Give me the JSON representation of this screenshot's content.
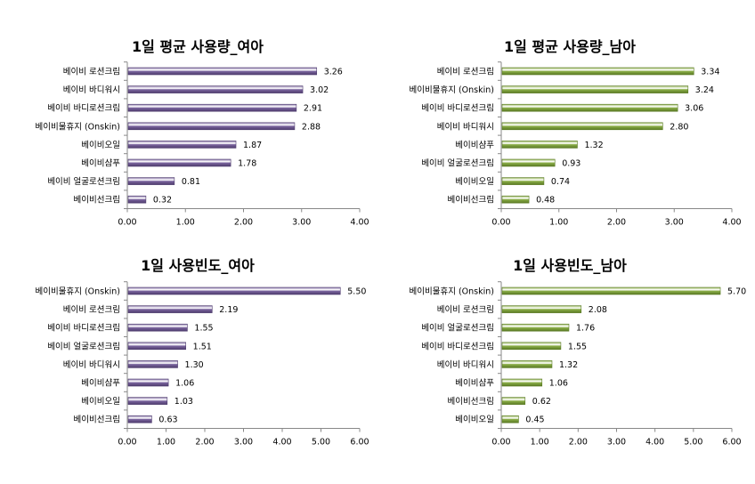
{
  "colors": {
    "female": "#7c66a0",
    "female_dark": "#4f3d6e",
    "male": "#8db04a",
    "male_dark": "#5a7a24",
    "axis": "#888888"
  },
  "chart_data": [
    {
      "type": "bar",
      "orientation": "horizontal",
      "title": "1일 평균 사용량_여아",
      "categories": [
        "베이비 로션크림",
        "베이비 바디워시",
        "베이비 바디로션크림",
        "베이비물휴지 (Onskin)",
        "베이비오일",
        "베이비샴푸",
        "베이비 얼굴로션크림",
        "베이비선크림"
      ],
      "values": [
        3.26,
        3.02,
        2.91,
        2.88,
        1.87,
        1.78,
        0.81,
        0.32
      ],
      "labels": [
        "3.26",
        "3.02",
        "2.91",
        "2.88",
        "1.87",
        "1.78",
        "0.81",
        "0.32"
      ],
      "xlim": [
        0,
        4
      ],
      "ticks": [
        "0.00",
        "1.00",
        "2.00",
        "3.00",
        "4.00"
      ],
      "series_color": "female",
      "grid": false,
      "legend": "none"
    },
    {
      "type": "bar",
      "orientation": "horizontal",
      "title": "1일 평균 사용량_남아",
      "categories": [
        "베이비 로션크림",
        "베이비물휴지 (Onskin)",
        "베이비 바디로션크림",
        "베이비 바디워시",
        "베이비샴푸",
        "베이비 얼굴로션크림",
        "베이비오일",
        "베이비선크림"
      ],
      "values": [
        3.34,
        3.24,
        3.06,
        2.8,
        1.32,
        0.93,
        0.74,
        0.48
      ],
      "labels": [
        "3.34",
        "3.24",
        "3.06",
        "2.80",
        "1.32",
        "0.93",
        "0.74",
        "0.48"
      ],
      "xlim": [
        0,
        4
      ],
      "ticks": [
        "0.00",
        "1.00",
        "2.00",
        "3.00",
        "4.00"
      ],
      "series_color": "male",
      "grid": false,
      "legend": "none"
    },
    {
      "type": "bar",
      "orientation": "horizontal",
      "title": "1일 사용빈도_여아",
      "categories": [
        "베이비물휴지 (Onskin)",
        "베이비 로션크림",
        "베이비 바디로션크림",
        "베이비 얼굴로션크림",
        "베이비 바디워시",
        "베이비샴푸",
        "베이비오일",
        "베이비선크림"
      ],
      "values": [
        5.5,
        2.19,
        1.55,
        1.51,
        1.3,
        1.06,
        1.03,
        0.63
      ],
      "labels": [
        "5.50",
        "2.19",
        "1.55",
        "1.51",
        "1.30",
        "1.06",
        "1.03",
        "0.63"
      ],
      "xlim": [
        0,
        6
      ],
      "ticks": [
        "0.00",
        "1.00",
        "2.00",
        "3.00",
        "4.00",
        "5.00",
        "6.00"
      ],
      "series_color": "female",
      "grid": false,
      "legend": "none"
    },
    {
      "type": "bar",
      "orientation": "horizontal",
      "title": "1일 사용빈도_남아",
      "categories": [
        "베이비물휴지 (Onskin)",
        "베이비 로션크림",
        "베이비 얼굴로션크림",
        "베이비 바디로션크림",
        "베이비 바디워시",
        "베이비샴푸",
        "베이비선크림",
        "베이비오일"
      ],
      "values": [
        5.7,
        2.08,
        1.76,
        1.55,
        1.32,
        1.06,
        0.62,
        0.45
      ],
      "labels": [
        "5.70",
        "2.08",
        "1.76",
        "1.55",
        "1.32",
        "1.06",
        "0.62",
        "0.45"
      ],
      "xlim": [
        0,
        6
      ],
      "ticks": [
        "0.00",
        "1.00",
        "2.00",
        "3.00",
        "4.00",
        "5.00",
        "6.00"
      ],
      "series_color": "male",
      "grid": false,
      "legend": "none"
    }
  ]
}
